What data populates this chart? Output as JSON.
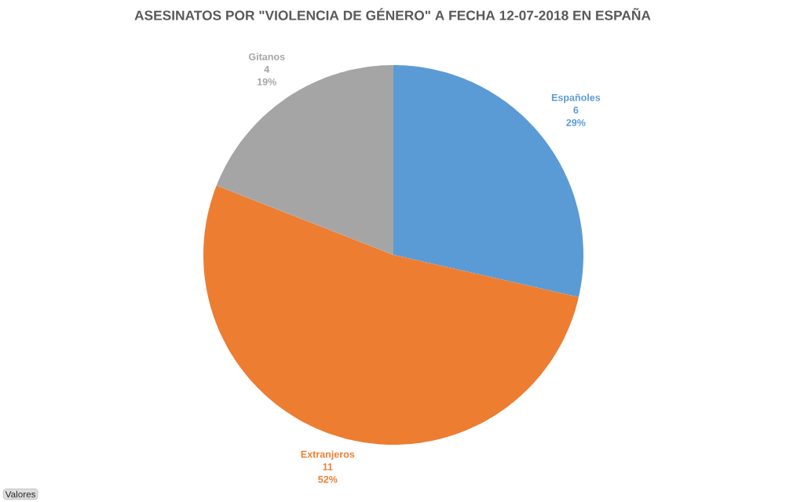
{
  "chart_data": {
    "type": "pie",
    "title": "ASESINATOS POR \"VIOLENCIA DE GÉNERO\" A FECHA 12-07-2018 EN ESPAÑA",
    "categories": [
      "Españoles",
      "Extranjeros",
      "Gitanos"
    ],
    "values": [
      6,
      11,
      4
    ],
    "colors": [
      "#5b9bd5",
      "#ed7d31",
      "#a5a5a5"
    ],
    "data_labels": true,
    "annotations": [
      {
        "text": "29%",
        "x": "Españoles"
      },
      {
        "text": "52%",
        "x": "Extranjeros"
      },
      {
        "text": "19%",
        "x": "Gitanos"
      },
      "Valores"
    ]
  }
}
